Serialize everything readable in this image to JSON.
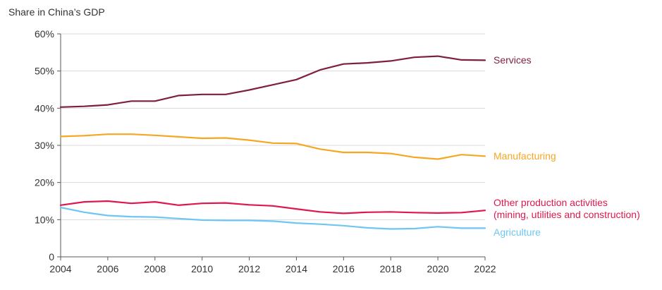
{
  "chart_data": {
    "type": "line",
    "title": "",
    "ylabel": "Share in China’s GDP",
    "xlabel": "",
    "x": [
      2004,
      2005,
      2006,
      2007,
      2008,
      2009,
      2010,
      2011,
      2012,
      2013,
      2014,
      2015,
      2016,
      2017,
      2018,
      2019,
      2020,
      2021,
      2022
    ],
    "xticks": [
      "2004",
      "2006",
      "2008",
      "2010",
      "2012",
      "2014",
      "2016",
      "2018",
      "2020",
      "2022"
    ],
    "xlim": [
      2004,
      2022
    ],
    "ylim": [
      0,
      60
    ],
    "yticks": [
      "0",
      "10%",
      "20%",
      "30%",
      "40%",
      "50%",
      "60%"
    ],
    "grid": true,
    "series": [
      {
        "name": "Services",
        "label_lines": [
          "Services"
        ],
        "color": "#7f1f3f",
        "values": [
          40.3,
          40.5,
          40.9,
          41.9,
          41.9,
          43.4,
          43.7,
          43.7,
          44.9,
          46.3,
          47.7,
          50.3,
          51.9,
          52.2,
          52.7,
          53.7,
          54.0,
          53.0,
          52.9
        ]
      },
      {
        "name": "Manufacturing",
        "label_lines": [
          "Manufacturing"
        ],
        "color": "#f5a623",
        "values": [
          32.4,
          32.6,
          33.0,
          33.0,
          32.7,
          32.3,
          31.9,
          32.0,
          31.4,
          30.6,
          30.5,
          29.0,
          28.1,
          28.1,
          27.8,
          26.8,
          26.3,
          27.5,
          27.1
        ]
      },
      {
        "name": "Other production activities (mining, utilities and construction)",
        "label_lines": [
          "Other production activities",
          "(mining,  utilities and construction)"
        ],
        "color": "#e0174f",
        "values": [
          13.9,
          14.8,
          15.0,
          14.4,
          14.8,
          13.9,
          14.4,
          14.5,
          14.0,
          13.7,
          12.9,
          12.1,
          11.7,
          12.0,
          12.1,
          11.9,
          11.8,
          11.9,
          12.5
        ]
      },
      {
        "name": "Agriculture",
        "label_lines": [
          "Agriculture"
        ],
        "color": "#6ec6f2",
        "values": [
          13.3,
          12.0,
          11.1,
          10.8,
          10.7,
          10.3,
          9.9,
          9.8,
          9.8,
          9.6,
          9.1,
          8.8,
          8.4,
          7.8,
          7.5,
          7.6,
          8.1,
          7.7,
          7.7
        ]
      }
    ]
  }
}
